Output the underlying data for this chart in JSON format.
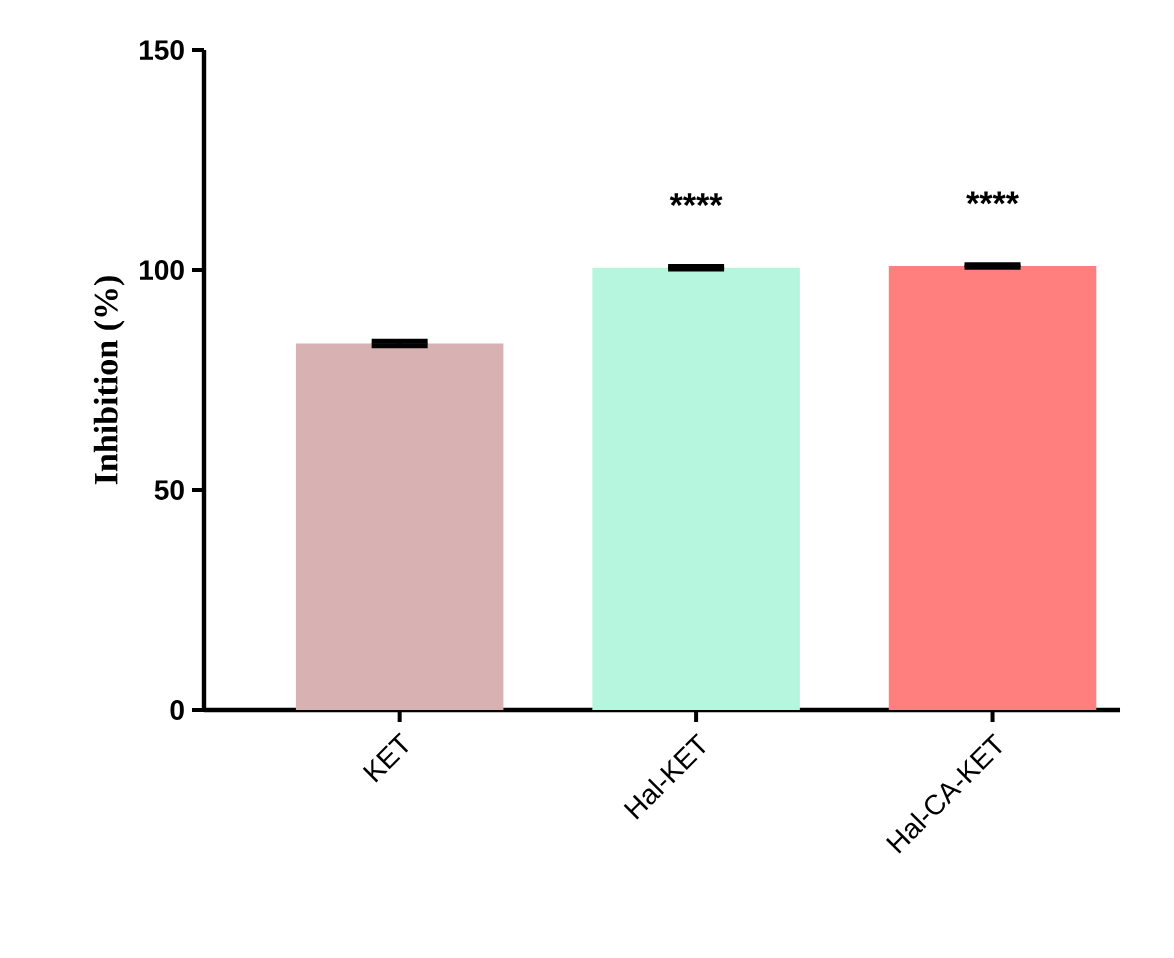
{
  "chart_data": {
    "type": "bar",
    "ylabel": "Inhibition (%)",
    "categories": [
      "KET",
      "Hal-KET",
      "Hal-CA-KET"
    ],
    "values": [
      83.3,
      100.5,
      100.9
    ],
    "errors": [
      0.5,
      0.3,
      0.3
    ],
    "colors": [
      "#d8b2b2",
      "#b6f6de",
      "#ff7f7f"
    ],
    "ylim": [
      0,
      150
    ],
    "yticks": [
      0,
      50,
      100,
      150
    ],
    "grid": false,
    "annotations": [
      "****",
      "****"
    ]
  }
}
